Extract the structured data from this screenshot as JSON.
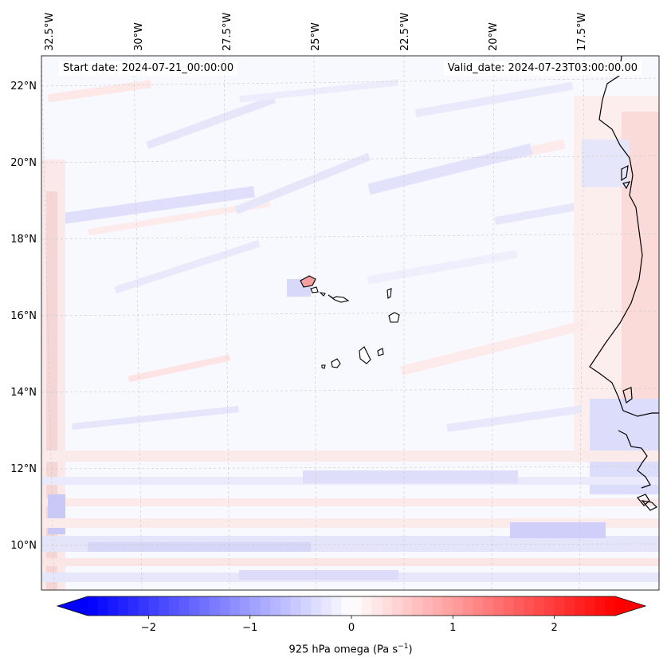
{
  "map": {
    "start_date_label": "Start date: 2024-07-21_00:00:00",
    "valid_date_label": "Valid_date: 2024-07-23T03:00:00.00",
    "lon_labels": [
      "32.5°W",
      "30°W",
      "27.5°W",
      "25°W",
      "22.5°W",
      "20°W",
      "17.5°W"
    ],
    "lat_labels": [
      "22°N",
      "20°N",
      "18°N",
      "16°N",
      "14°N",
      "12°N",
      "10°N"
    ],
    "islands": [
      "Santo Antão",
      "São Vicente",
      "Santa Luzia",
      "São Nicolau",
      "Sal",
      "Boa Vista",
      "Maio",
      "Santiago",
      "Fogo",
      "Brava"
    ],
    "coastline": "West Africa"
  },
  "colorbar": {
    "label_prefix": "925 hPa omega (Pa s",
    "label_exponent": "−1",
    "label_suffix": ")",
    "ticks": [
      -2,
      -1,
      0,
      1,
      2
    ],
    "tick_labels": [
      "−2",
      "−1",
      "0",
      "1",
      "2"
    ],
    "vmin": -2.6,
    "vmax": 2.6,
    "extend": "both",
    "colormap": "bwr",
    "color_low": "#0000ff",
    "color_mid": "#ffffff",
    "color_high": "#ff0000"
  }
}
